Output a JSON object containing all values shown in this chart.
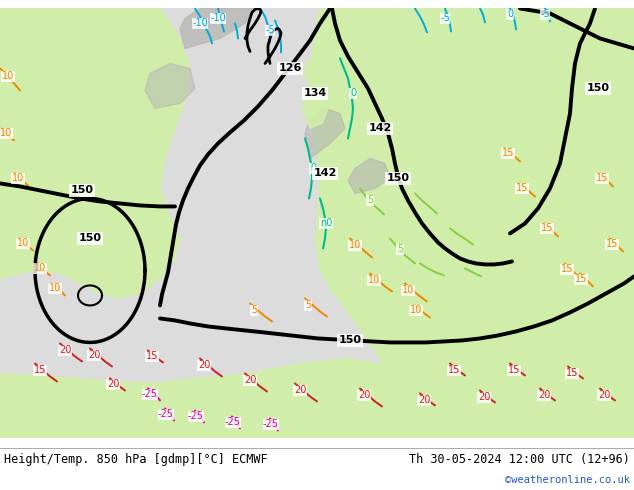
{
  "title_left": "Height/Temp. 850 hPa [gdmp][°C] ECMWF",
  "title_right": "Th 30-05-2024 12:00 UTC (12+96)",
  "copyright": "©weatheronline.co.uk",
  "bg_color": "#ffffff",
  "land_green_light": "#d0eeaa",
  "land_green_dark": "#b8dc88",
  "ocean_color": "#dcdcdc",
  "mountain_gray": "#b4b4b0",
  "black_contour": "#000000",
  "cyan_color": "#00aadd",
  "teal_color": "#00bb88",
  "green_color": "#88cc44",
  "orange_color": "#ee8800",
  "red_color": "#cc2222",
  "pink_color": "#dd00aa",
  "label_left_color": "#000000",
  "label_right_color": "#000000",
  "copy_color": "#2255cc",
  "figsize": [
    6.34,
    4.9
  ],
  "dpi": 100
}
